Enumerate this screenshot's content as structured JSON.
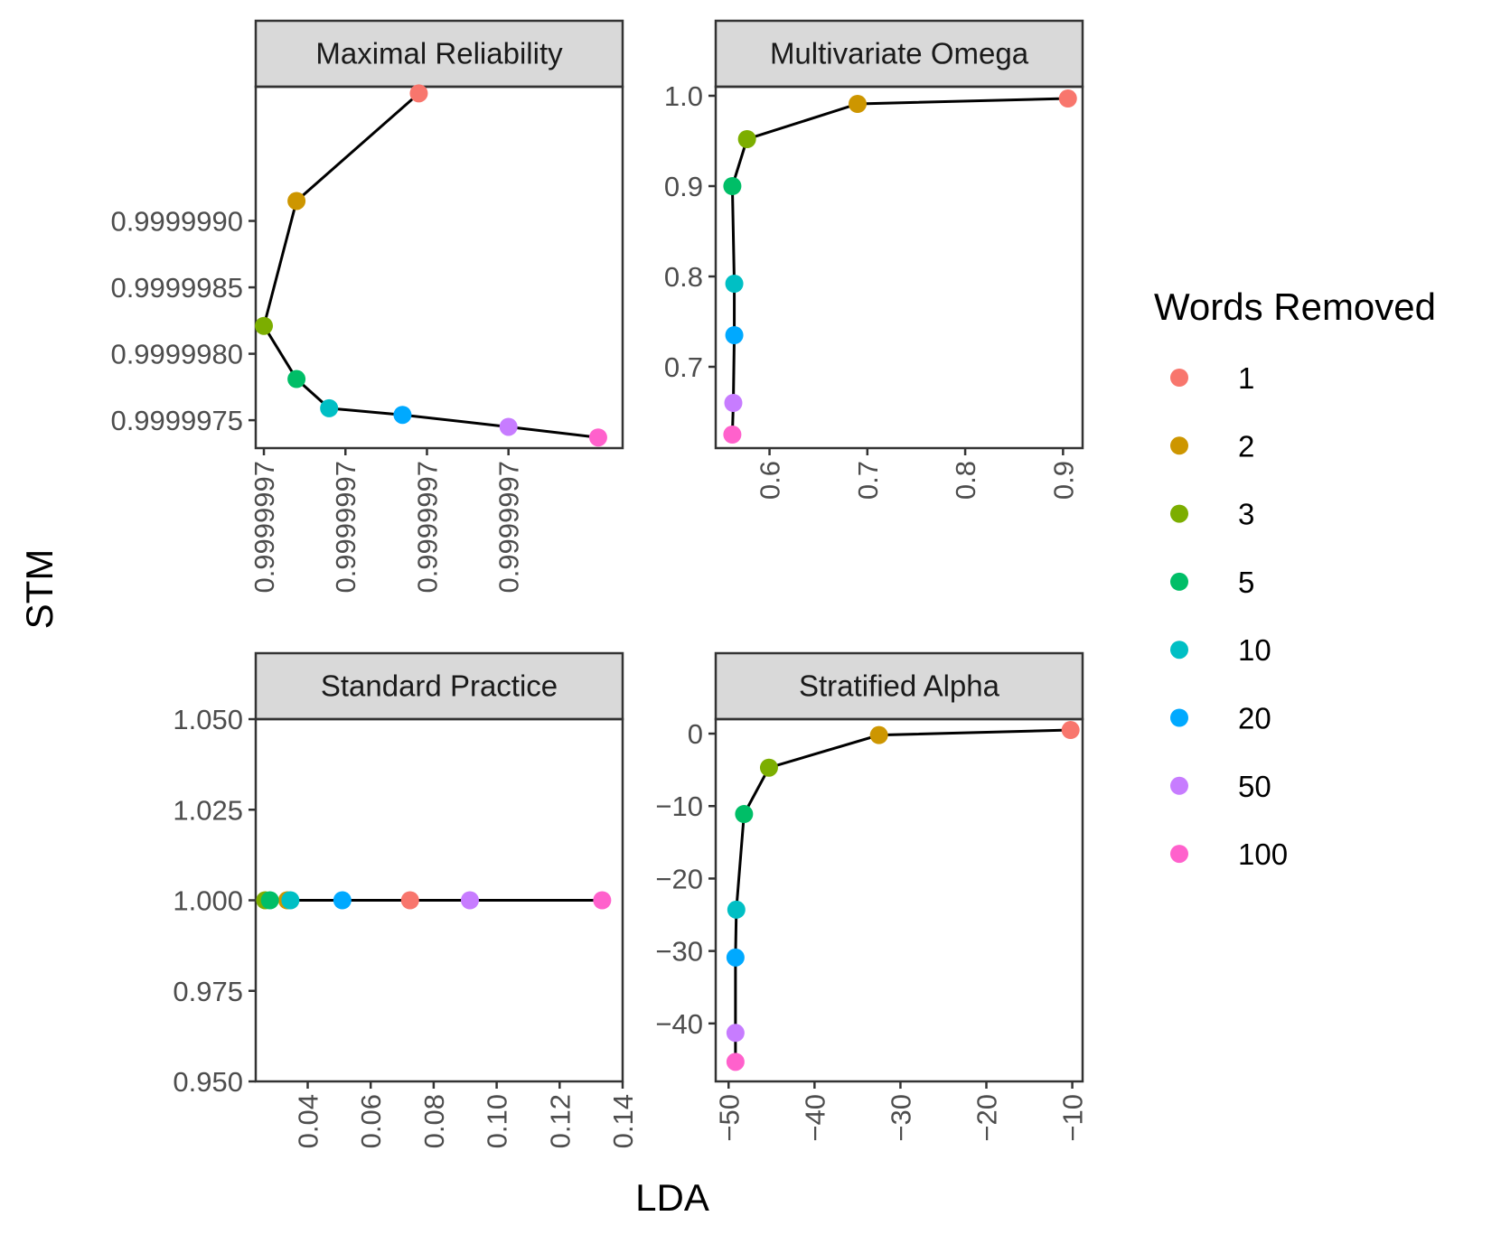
{
  "chart_data": {
    "type": "scatter",
    "xlabel": "LDA",
    "ylabel": "STM",
    "legend": {
      "title": "Words Removed",
      "position": "right",
      "entries": [
        {
          "label": "1",
          "color": "#F8766D"
        },
        {
          "label": "2",
          "color": "#CD9600"
        },
        {
          "label": "3",
          "color": "#7CAE00"
        },
        {
          "label": "5",
          "color": "#00BE67"
        },
        {
          "label": "10",
          "color": "#00BFC4"
        },
        {
          "label": "20",
          "color": "#00A9FF"
        },
        {
          "label": "50",
          "color": "#C77CFF"
        },
        {
          "label": "100",
          "color": "#FF61CC"
        }
      ]
    },
    "panels": [
      {
        "title": "Maximal Reliability",
        "xlim": [
          0.99999965,
          1.0000001
        ],
        "ylim": [
          0.99999729,
          1.00000001
        ],
        "xticks": [
          0.99999966,
          0.99999976,
          0.99999986,
          0.99999996
        ],
        "xtick_labels": [
          "0.9999997",
          "0.9999997",
          "0.9999997",
          "0.9999997"
        ],
        "yticks": [
          0.9999975,
          0.999998,
          0.9999985,
          0.999999
        ],
        "ytick_labels": [
          "0.9999975",
          "0.9999980",
          "0.9999985",
          "0.9999990"
        ],
        "points": [
          {
            "words": "1",
            "x": 0.99999985,
            "y": 0.99999996
          },
          {
            "words": "2",
            "x": 0.9999997,
            "y": 0.99999915
          },
          {
            "words": "3",
            "x": 0.99999966,
            "y": 0.99999821
          },
          {
            "words": "5",
            "x": 0.9999997,
            "y": 0.99999781
          },
          {
            "words": "10",
            "x": 0.99999974,
            "y": 0.99999759
          },
          {
            "words": "20",
            "x": 0.99999983,
            "y": 0.99999754
          },
          {
            "words": "50",
            "x": 0.99999996,
            "y": 0.99999745
          },
          {
            "words": "100",
            "x": 1.00000007,
            "y": 0.99999737
          }
        ]
      },
      {
        "title": "Multivariate Omega",
        "xlim": [
          0.545,
          0.92
        ],
        "ylim": [
          0.61,
          1.01
        ],
        "xticks": [
          0.6,
          0.7,
          0.8,
          0.9
        ],
        "xtick_labels": [
          "0.6",
          "0.7",
          "0.8",
          "0.9"
        ],
        "yticks": [
          0.7,
          0.8,
          0.9,
          1.0
        ],
        "ytick_labels": [
          "0.7",
          "0.8",
          "0.9",
          "1.0"
        ],
        "points": [
          {
            "words": "1",
            "x": 0.905,
            "y": 0.997
          },
          {
            "words": "2",
            "x": 0.69,
            "y": 0.991
          },
          {
            "words": "3",
            "x": 0.577,
            "y": 0.952
          },
          {
            "words": "5",
            "x": 0.562,
            "y": 0.9
          },
          {
            "words": "10",
            "x": 0.564,
            "y": 0.792
          },
          {
            "words": "20",
            "x": 0.564,
            "y": 0.735
          },
          {
            "words": "50",
            "x": 0.563,
            "y": 0.66
          },
          {
            "words": "100",
            "x": 0.562,
            "y": 0.625
          }
        ]
      },
      {
        "title": "Standard Practice",
        "xlim": [
          0.0235,
          0.14
        ],
        "ylim": [
          0.95,
          1.05
        ],
        "xticks": [
          0.04,
          0.06,
          0.08,
          0.1,
          0.12,
          0.14
        ],
        "xtick_labels": [
          "0.04",
          "0.06",
          "0.08",
          "0.10",
          "0.12",
          "0.14"
        ],
        "yticks": [
          0.95,
          0.975,
          1.0,
          1.025,
          1.05
        ],
        "ytick_labels": [
          "0.950",
          "0.975",
          "1.000",
          "1.025",
          "1.050"
        ],
        "points": [
          {
            "words": "1",
            "x": 0.0725,
            "y": 1.0
          },
          {
            "words": "2",
            "x": 0.0335,
            "y": 1.0
          },
          {
            "words": "3",
            "x": 0.0265,
            "y": 1.0
          },
          {
            "words": "5",
            "x": 0.028,
            "y": 1.0
          },
          {
            "words": "10",
            "x": 0.0345,
            "y": 1.0
          },
          {
            "words": "20",
            "x": 0.051,
            "y": 1.0
          },
          {
            "words": "50",
            "x": 0.0915,
            "y": 1.0
          },
          {
            "words": "100",
            "x": 0.1335,
            "y": 1.0
          }
        ]
      },
      {
        "title": "Stratified Alpha",
        "xlim": [
          -51.5,
          -8.8
        ],
        "ylim": [
          -48.0,
          2.0
        ],
        "xticks": [
          -50,
          -40,
          -30,
          -20,
          -10
        ],
        "xtick_labels": [
          "−50",
          "−40",
          "−30",
          "−20",
          "−10"
        ],
        "yticks": [
          -40,
          -30,
          -20,
          -10,
          0
        ],
        "ytick_labels": [
          "−40",
          "−30",
          "−20",
          "−10",
          "0"
        ],
        "points": [
          {
            "words": "1",
            "x": -10.2,
            "y": 0.5
          },
          {
            "words": "2",
            "x": -32.5,
            "y": -0.2
          },
          {
            "words": "3",
            "x": -45.3,
            "y": -4.7
          },
          {
            "words": "5",
            "x": -48.2,
            "y": -11.1
          },
          {
            "words": "10",
            "x": -49.1,
            "y": -24.3
          },
          {
            "words": "20",
            "x": -49.2,
            "y": -30.9
          },
          {
            "words": "50",
            "x": -49.2,
            "y": -41.3
          },
          {
            "words": "100",
            "x": -49.2,
            "y": -45.3
          }
        ]
      }
    ]
  }
}
